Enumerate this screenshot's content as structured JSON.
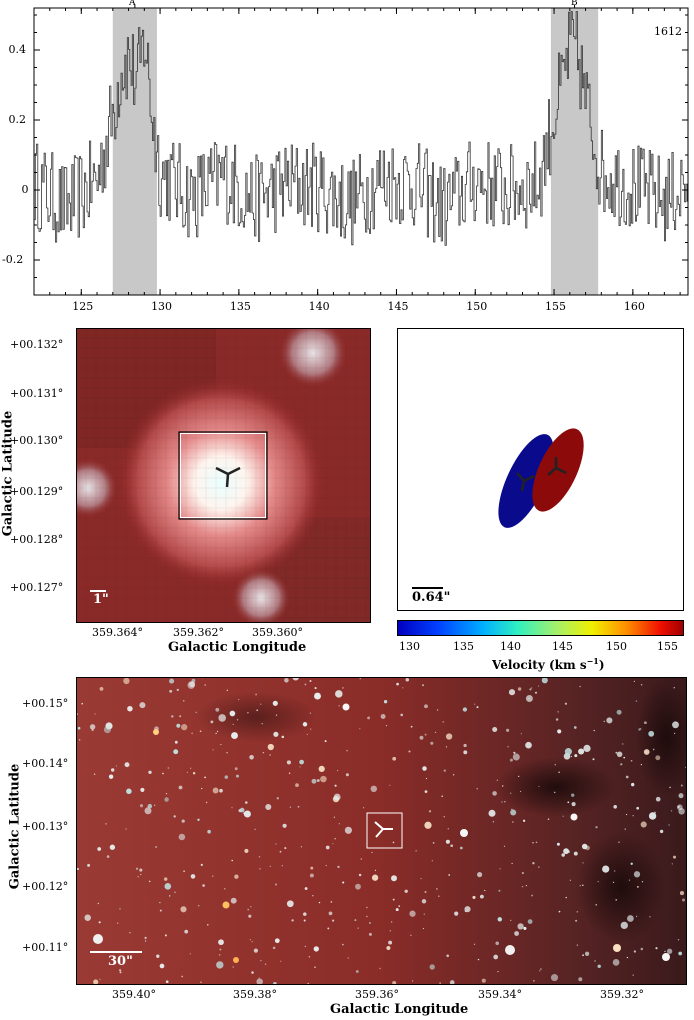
{
  "spectrum": {
    "label": "1612",
    "region_labels": [
      "A",
      "B"
    ],
    "regions": [
      [
        127.0,
        129.8
      ],
      [
        154.8,
        157.8
      ]
    ],
    "xlim": [
      122,
      163.5
    ],
    "ylim": [
      -0.3,
      0.52
    ],
    "xticks": [
      "125",
      "130",
      "135",
      "140",
      "145",
      "150",
      "155",
      "160"
    ],
    "yticks": [
      "0.4",
      "0.2",
      "0",
      "-0.2"
    ]
  },
  "chart_data": {
    "type": "line",
    "title": "",
    "xlabel": "",
    "ylabel": "",
    "xlim": [
      122,
      163.5
    ],
    "ylim": [
      -0.3,
      0.52
    ],
    "series": [
      {
        "x": [
          122,
          124,
          126,
          127,
          127.5,
          128,
          128.5,
          129,
          129.5,
          130,
          132,
          134,
          136,
          138,
          140,
          142,
          144,
          146,
          148,
          150,
          152,
          154,
          155,
          155.5,
          156,
          156.5,
          157,
          157.5,
          158,
          160,
          162,
          163.5
        ],
        "y": [
          0.02,
          -0.05,
          0.03,
          0.22,
          0.35,
          0.38,
          0.3,
          0.44,
          0.2,
          0.05,
          -0.02,
          0.04,
          -0.03,
          0.02,
          0.01,
          -0.04,
          0.03,
          0.02,
          -0.05,
          0.03,
          0.0,
          0.02,
          0.22,
          0.3,
          0.42,
          0.38,
          0.25,
          0.15,
          0.05,
          0.01,
          -0.03,
          0.02
        ]
      }
    ]
  },
  "mid_left": {
    "yticks": [
      "+00.132°",
      "+00.131°",
      "+00.130°",
      "+00.129°",
      "+00.128°",
      "+00.127°"
    ],
    "xticks": [
      "359.364°",
      "359.362°",
      "359.360°"
    ],
    "xlabel": "Galactic Longitude",
    "ylabel": "Galactic Latitude",
    "scalebar": "1\""
  },
  "mid_right": {
    "scalebar": "0.64\"",
    "colorbar_ticks": [
      "130",
      "135",
      "140",
      "145",
      "150",
      "155"
    ],
    "colorbar_label": "Velocity (km s",
    "colorbar_label_sup": "−1",
    "colorbar_label_end": ")",
    "colors": {
      "blue": "#0a0a8c",
      "red": "#8c0a0a"
    }
  },
  "bottom": {
    "yticks": [
      "+00.15°",
      "+00.14°",
      "+00.13°",
      "+00.12°",
      "+00.11°"
    ],
    "xticks": [
      "359.40°",
      "359.38°",
      "359.36°",
      "359.34°",
      "359.32°"
    ],
    "xlabel": "Galactic Longitude",
    "ylabel": "Galactic Latitude",
    "scalebar": "30\""
  }
}
